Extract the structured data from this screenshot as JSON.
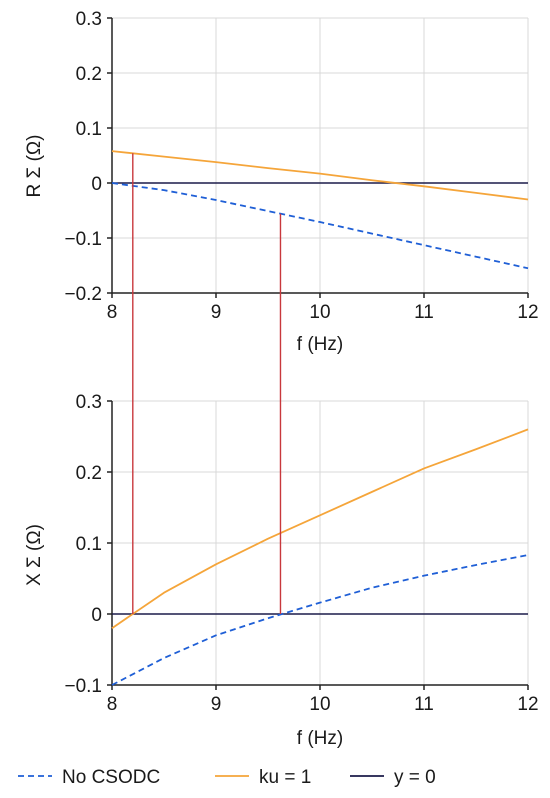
{
  "colors": {
    "no_csodc": "#1f5fd6",
    "ku1": "#f5a53a",
    "y0": "#1c1c4a",
    "markers": "#c8383c",
    "grid": "#d9d9d9",
    "axis": "#222222"
  },
  "legend": [
    {
      "label": "No CSODC",
      "style": "dashed",
      "color_key": "no_csodc",
      "icon": "dashed-line"
    },
    {
      "label": "ku = 1",
      "style": "solid",
      "color_key": "ku1",
      "icon": "solid-line"
    },
    {
      "label": "y = 0",
      "style": "solid",
      "color_key": "y0",
      "icon": "solid-line"
    }
  ],
  "chart_data": [
    {
      "type": "line",
      "xlabel": "f (Hz)",
      "ylabel": "R Σ (Ω)",
      "xlim": [
        8,
        12
      ],
      "ylim": [
        -0.2,
        0.3
      ],
      "xticks": [
        "8",
        "9",
        "10",
        "11",
        "12"
      ],
      "yticks": [
        "0.3",
        "0.2",
        "0.1",
        "0",
        "−0.1",
        "−0.2"
      ],
      "grid": true,
      "series": [
        {
          "name": "No CSODC",
          "x": [
            8,
            8.5,
            9,
            9.5,
            10,
            10.5,
            11,
            11.5,
            12
          ],
          "y": [
            0.0,
            -0.013,
            -0.031,
            -0.051,
            -0.071,
            -0.092,
            -0.113,
            -0.134,
            -0.155
          ]
        },
        {
          "name": "ku = 1",
          "x": [
            8,
            8.5,
            9,
            9.5,
            10,
            10.5,
            11,
            11.5,
            12
          ],
          "y": [
            0.058,
            0.048,
            0.038,
            0.027,
            0.017,
            0.005,
            -0.006,
            -0.018,
            -0.03
          ]
        },
        {
          "name": "y = 0",
          "x": [
            8,
            12
          ],
          "y": [
            0,
            0
          ]
        }
      ],
      "markers": [
        8.2,
        9.62
      ]
    },
    {
      "type": "line",
      "xlabel": "f (Hz)",
      "ylabel": "X Σ (Ω)",
      "xlim": [
        8,
        12
      ],
      "ylim": [
        -0.1,
        0.3
      ],
      "xticks": [
        "8",
        "9",
        "10",
        "11",
        "12"
      ],
      "yticks": [
        "0.3",
        "0.2",
        "0.1",
        "0",
        "−0.1"
      ],
      "grid": true,
      "series": [
        {
          "name": "No CSODC",
          "x": [
            8,
            8.5,
            9,
            9.5,
            10,
            10.5,
            11,
            11.5,
            12
          ],
          "y": [
            -0.1,
            -0.062,
            -0.03,
            -0.006,
            0.016,
            0.037,
            0.054,
            0.069,
            0.083
          ]
        },
        {
          "name": "ku = 1",
          "x": [
            8,
            8.5,
            9,
            9.5,
            10,
            10.5,
            11,
            11.5,
            12
          ],
          "y": [
            -0.02,
            0.03,
            0.07,
            0.106,
            0.139,
            0.172,
            0.205,
            0.232,
            0.26
          ]
        },
        {
          "name": "y = 0",
          "x": [
            8,
            12
          ],
          "y": [
            0,
            0
          ]
        }
      ],
      "markers": [
        8.2,
        9.62
      ]
    }
  ]
}
